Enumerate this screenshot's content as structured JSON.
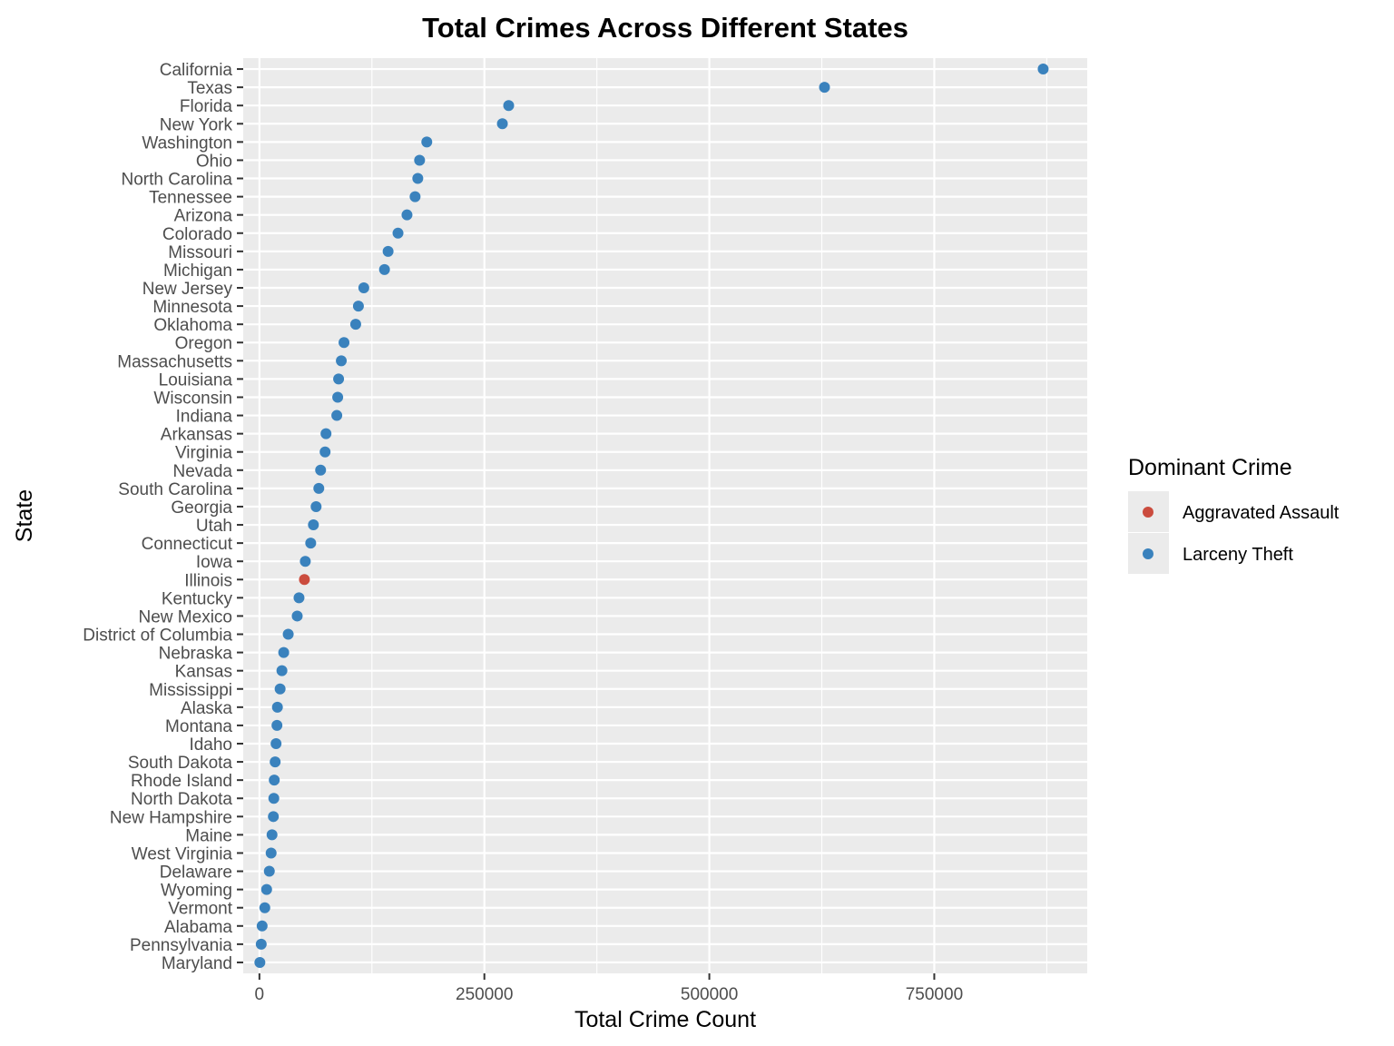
{
  "chart_data": {
    "type": "scatter",
    "title": "Total Crimes Across Different States",
    "xlabel": "Total Crime Count",
    "ylabel": "State",
    "xlim": [
      -18000,
      920000
    ],
    "x_ticks": [
      0,
      250000,
      500000,
      750000
    ],
    "grid": true,
    "legend": {
      "title": "Dominant Crime",
      "position": "right",
      "entries": [
        {
          "label": "Aggravated Assault",
          "color": "#CB4C3E"
        },
        {
          "label": "Larceny Theft",
          "color": "#3A82BD"
        }
      ]
    },
    "points": [
      {
        "state": "California",
        "value": 871000,
        "crime": "Larceny Theft"
      },
      {
        "state": "Texas",
        "value": 628000,
        "crime": "Larceny Theft"
      },
      {
        "state": "Florida",
        "value": 277000,
        "crime": "Larceny Theft"
      },
      {
        "state": "New York",
        "value": 270000,
        "crime": "Larceny Theft"
      },
      {
        "state": "Washington",
        "value": 186000,
        "crime": "Larceny Theft"
      },
      {
        "state": "Ohio",
        "value": 178000,
        "crime": "Larceny Theft"
      },
      {
        "state": "North Carolina",
        "value": 176000,
        "crime": "Larceny Theft"
      },
      {
        "state": "Tennessee",
        "value": 173000,
        "crime": "Larceny Theft"
      },
      {
        "state": "Arizona",
        "value": 164000,
        "crime": "Larceny Theft"
      },
      {
        "state": "Colorado",
        "value": 154000,
        "crime": "Larceny Theft"
      },
      {
        "state": "Missouri",
        "value": 143000,
        "crime": "Larceny Theft"
      },
      {
        "state": "Michigan",
        "value": 139000,
        "crime": "Larceny Theft"
      },
      {
        "state": "New Jersey",
        "value": 116000,
        "crime": "Larceny Theft"
      },
      {
        "state": "Minnesota",
        "value": 110000,
        "crime": "Larceny Theft"
      },
      {
        "state": "Oklahoma",
        "value": 107000,
        "crime": "Larceny Theft"
      },
      {
        "state": "Oregon",
        "value": 94000,
        "crime": "Larceny Theft"
      },
      {
        "state": "Massachusetts",
        "value": 91000,
        "crime": "Larceny Theft"
      },
      {
        "state": "Louisiana",
        "value": 88000,
        "crime": "Larceny Theft"
      },
      {
        "state": "Wisconsin",
        "value": 87000,
        "crime": "Larceny Theft"
      },
      {
        "state": "Indiana",
        "value": 86000,
        "crime": "Larceny Theft"
      },
      {
        "state": "Arkansas",
        "value": 74000,
        "crime": "Larceny Theft"
      },
      {
        "state": "Virginia",
        "value": 73000,
        "crime": "Larceny Theft"
      },
      {
        "state": "Nevada",
        "value": 68000,
        "crime": "Larceny Theft"
      },
      {
        "state": "South Carolina",
        "value": 66000,
        "crime": "Larceny Theft"
      },
      {
        "state": "Georgia",
        "value": 63000,
        "crime": "Larceny Theft"
      },
      {
        "state": "Utah",
        "value": 60000,
        "crime": "Larceny Theft"
      },
      {
        "state": "Connecticut",
        "value": 57000,
        "crime": "Larceny Theft"
      },
      {
        "state": "Iowa",
        "value": 51000,
        "crime": "Larceny Theft"
      },
      {
        "state": "Illinois",
        "value": 50000,
        "crime": "Aggravated Assault"
      },
      {
        "state": "Kentucky",
        "value": 44000,
        "crime": "Larceny Theft"
      },
      {
        "state": "New Mexico",
        "value": 42000,
        "crime": "Larceny Theft"
      },
      {
        "state": "District of Columbia",
        "value": 32000,
        "crime": "Larceny Theft"
      },
      {
        "state": "Nebraska",
        "value": 27000,
        "crime": "Larceny Theft"
      },
      {
        "state": "Kansas",
        "value": 25000,
        "crime": "Larceny Theft"
      },
      {
        "state": "Mississippi",
        "value": 23000,
        "crime": "Larceny Theft"
      },
      {
        "state": "Alaska",
        "value": 20000,
        "crime": "Larceny Theft"
      },
      {
        "state": "Montana",
        "value": 19500,
        "crime": "Larceny Theft"
      },
      {
        "state": "Idaho",
        "value": 18500,
        "crime": "Larceny Theft"
      },
      {
        "state": "South Dakota",
        "value": 17500,
        "crime": "Larceny Theft"
      },
      {
        "state": "Rhode Island",
        "value": 16500,
        "crime": "Larceny Theft"
      },
      {
        "state": "North Dakota",
        "value": 16000,
        "crime": "Larceny Theft"
      },
      {
        "state": "New Hampshire",
        "value": 15500,
        "crime": "Larceny Theft"
      },
      {
        "state": "Maine",
        "value": 14000,
        "crime": "Larceny Theft"
      },
      {
        "state": "West Virginia",
        "value": 13000,
        "crime": "Larceny Theft"
      },
      {
        "state": "Delaware",
        "value": 11000,
        "crime": "Larceny Theft"
      },
      {
        "state": "Wyoming",
        "value": 8000,
        "crime": "Larceny Theft"
      },
      {
        "state": "Vermont",
        "value": 6000,
        "crime": "Larceny Theft"
      },
      {
        "state": "Alabama",
        "value": 3000,
        "crime": "Larceny Theft"
      },
      {
        "state": "Pennsylvania",
        "value": 2000,
        "crime": "Larceny Theft"
      },
      {
        "state": "Maryland",
        "value": 500,
        "crime": "Larceny Theft"
      }
    ]
  }
}
